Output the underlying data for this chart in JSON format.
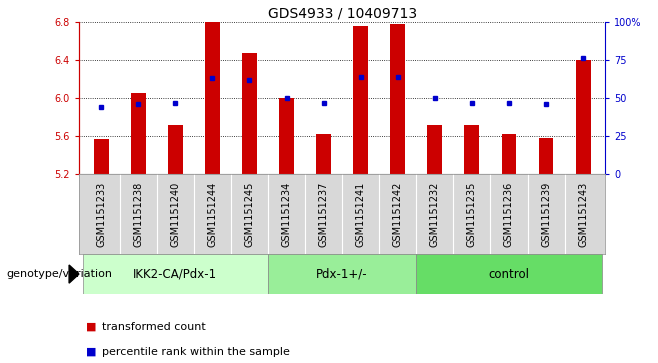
{
  "title": "GDS4933 / 10409713",
  "samples": [
    "GSM1151233",
    "GSM1151238",
    "GSM1151240",
    "GSM1151244",
    "GSM1151245",
    "GSM1151234",
    "GSM1151237",
    "GSM1151241",
    "GSM1151242",
    "GSM1151232",
    "GSM1151235",
    "GSM1151236",
    "GSM1151239",
    "GSM1151243"
  ],
  "bar_values": [
    5.57,
    6.05,
    5.72,
    6.8,
    6.47,
    6.0,
    5.62,
    6.76,
    6.78,
    5.72,
    5.72,
    5.62,
    5.58,
    6.4
  ],
  "percentile_values": [
    44,
    46,
    47,
    63,
    62,
    50,
    47,
    64,
    64,
    50,
    47,
    47,
    46,
    76
  ],
  "groups": [
    {
      "label": "IKK2-CA/Pdx-1",
      "start": 0,
      "end": 4,
      "color": "#ccffcc"
    },
    {
      "label": "Pdx-1+/-",
      "start": 5,
      "end": 8,
      "color": "#99ee99"
    },
    {
      "label": "control",
      "start": 9,
      "end": 13,
      "color": "#66dd66"
    }
  ],
  "ylim_left": [
    5.2,
    6.8
  ],
  "ylim_right": [
    0,
    100
  ],
  "left_yticks": [
    5.2,
    5.6,
    6.0,
    6.4,
    6.8
  ],
  "right_yticks": [
    0,
    25,
    50,
    75,
    100
  ],
  "right_yticklabels": [
    "0",
    "25",
    "50",
    "75",
    "100%"
  ],
  "bar_color": "#cc0000",
  "point_color": "#0000cc",
  "bar_bottom": 5.2,
  "legend_bar_label": "transformed count",
  "legend_point_label": "percentile rank within the sample",
  "group_label_prefix": "genotype/variation",
  "title_fontsize": 10,
  "tick_fontsize": 7,
  "label_fontsize": 8,
  "sample_fontsize": 7,
  "group_fontsize": 8.5
}
